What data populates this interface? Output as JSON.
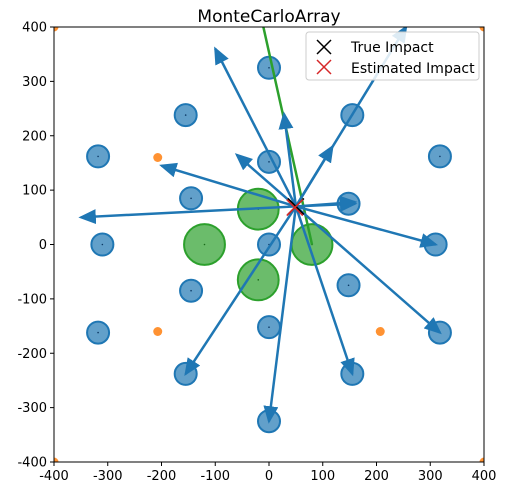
{
  "chart_data": {
    "type": "scatter",
    "title": "MonteCarloArray",
    "xlabel": "",
    "ylabel": "",
    "xlim": [
      -400,
      400
    ],
    "ylim": [
      -400,
      400
    ],
    "xticks": [
      -400,
      -300,
      -200,
      -100,
      0,
      100,
      200,
      300,
      400
    ],
    "yticks": [
      -400,
      -300,
      -200,
      -100,
      0,
      100,
      200,
      300,
      400
    ],
    "grid": false,
    "legend": {
      "placement": "upper-right",
      "entries": [
        {
          "label": "True Impact",
          "marker": "x",
          "color": "#000000"
        },
        {
          "label": "Estimated Impact",
          "marker": "x",
          "color": "#d62728"
        }
      ]
    },
    "colors": {
      "sensor": "#1f77b4",
      "corner": "#ff7f0e",
      "cluster": "#2ca02c",
      "true_impact": "#000000",
      "estimated_impact": "#d62728"
    },
    "sensors": [
      {
        "x": 0,
        "y": 325
      },
      {
        "x": 155,
        "y": 238
      },
      {
        "x": 318,
        "y": 162
      },
      {
        "x": 0,
        "y": 152
      },
      {
        "x": -155,
        "y": 238
      },
      {
        "x": -318,
        "y": 162
      },
      {
        "x": -145,
        "y": 85
      },
      {
        "x": 148,
        "y": 75
      },
      {
        "x": -310,
        "y": 0
      },
      {
        "x": 0,
        "y": 0
      },
      {
        "x": 310,
        "y": 0
      },
      {
        "x": -145,
        "y": -85
      },
      {
        "x": 148,
        "y": -75
      },
      {
        "x": 0,
        "y": -152
      },
      {
        "x": -318,
        "y": -162
      },
      {
        "x": 318,
        "y": -162
      },
      {
        "x": -155,
        "y": -238
      },
      {
        "x": 155,
        "y": -238
      },
      {
        "x": 0,
        "y": -325
      }
    ],
    "corner_points": [
      {
        "x": -400,
        "y": 400
      },
      {
        "x": 400,
        "y": 400
      },
      {
        "x": -400,
        "y": -400
      },
      {
        "x": 400,
        "y": -400
      },
      {
        "x": -207,
        "y": 160
      },
      {
        "x": -207,
        "y": -160
      },
      {
        "x": 207,
        "y": -160
      }
    ],
    "clusters": [
      {
        "x": -20,
        "y": 65,
        "r": 38
      },
      {
        "x": -120,
        "y": 0,
        "r": 38
      },
      {
        "x": 80,
        "y": 0,
        "r": 38
      },
      {
        "x": -20,
        "y": -65,
        "r": 38
      }
    ],
    "arrow_origin": {
      "x": 50,
      "y": 70
    },
    "arrows": [
      {
        "x": -350,
        "y": 50
      },
      {
        "x": -200,
        "y": 145
      },
      {
        "x": -60,
        "y": 165
      },
      {
        "x": -100,
        "y": 360
      },
      {
        "x": 28,
        "y": 240
      },
      {
        "x": 118,
        "y": 180
      },
      {
        "x": 255,
        "y": 400
      },
      {
        "x": 160,
        "y": 75
      },
      {
        "x": 310,
        "y": 0
      },
      {
        "x": 318,
        "y": -162
      },
      {
        "x": 155,
        "y": -238
      },
      {
        "x": -155,
        "y": -238
      },
      {
        "x": 0,
        "y": -325
      },
      {
        "x": 160,
        "y": 78
      }
    ],
    "green_line": {
      "x1": -15,
      "y1": 420,
      "x2": 80,
      "y2": 0
    },
    "true_impact": {
      "x": 50,
      "y": 70
    },
    "estimated_impact": {
      "x": 48,
      "y": 68
    }
  }
}
